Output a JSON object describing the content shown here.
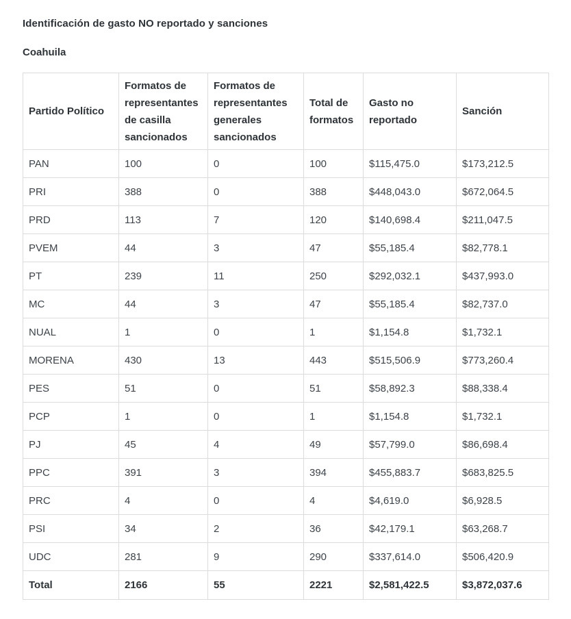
{
  "page": {
    "title": "Identificación de gasto NO reportado y sanciones",
    "subtitle": "Coahuila"
  },
  "table": {
    "columns": [
      "Partido Político",
      "Formatos de representantes de casilla sancionados",
      "Formatos de representantes generales sancionados",
      "Total de formatos",
      "Gasto no reportado",
      "Sanción"
    ],
    "rows": [
      {
        "is_total": false,
        "cells": [
          "PAN",
          "100",
          "0",
          "100",
          "$115,475.0",
          "$173,212.5"
        ]
      },
      {
        "is_total": false,
        "cells": [
          "PRI",
          "388",
          "0",
          "388",
          "$448,043.0",
          "$672,064.5"
        ]
      },
      {
        "is_total": false,
        "cells": [
          "PRD",
          "113",
          "7",
          "120",
          "$140,698.4",
          "$211,047.5"
        ]
      },
      {
        "is_total": false,
        "cells": [
          "PVEM",
          "44",
          "3",
          "47",
          "$55,185.4",
          "$82,778.1"
        ]
      },
      {
        "is_total": false,
        "cells": [
          "PT",
          "239",
          "11",
          "250",
          "$292,032.1",
          "$437,993.0"
        ]
      },
      {
        "is_total": false,
        "cells": [
          "MC",
          "44",
          "3",
          "47",
          "$55,185.4",
          "$82,737.0"
        ]
      },
      {
        "is_total": false,
        "cells": [
          "NUAL",
          "1",
          "0",
          "1",
          "$1,154.8",
          "$1,732.1"
        ]
      },
      {
        "is_total": false,
        "cells": [
          "MORENA",
          "430",
          "13",
          "443",
          "$515,506.9",
          "$773,260.4"
        ]
      },
      {
        "is_total": false,
        "cells": [
          "PES",
          "51",
          "0",
          "51",
          "$58,892.3",
          "$88,338.4"
        ]
      },
      {
        "is_total": false,
        "cells": [
          "PCP",
          "1",
          "0",
          "1",
          "$1,154.8",
          "$1,732.1"
        ]
      },
      {
        "is_total": false,
        "cells": [
          "PJ",
          "45",
          "4",
          "49",
          "$57,799.0",
          "$86,698.4"
        ]
      },
      {
        "is_total": false,
        "cells": [
          "PPC",
          "391",
          "3",
          "394",
          "$455,883.7",
          "$683,825.5"
        ]
      },
      {
        "is_total": false,
        "cells": [
          "PRC",
          "4",
          "0",
          "4",
          "$4,619.0",
          "$6,928.5"
        ]
      },
      {
        "is_total": false,
        "cells": [
          "PSI",
          "34",
          "2",
          "36",
          "$42,179.1",
          "$63,268.7"
        ]
      },
      {
        "is_total": false,
        "cells": [
          "UDC",
          "281",
          "9",
          "290",
          "$337,614.0",
          "$506,420.9"
        ]
      },
      {
        "is_total": true,
        "cells": [
          "Total",
          "2166",
          "55",
          "2221",
          "$2,581,422.5",
          "$3,872,037.6"
        ]
      }
    ]
  },
  "colors": {
    "text": "#3d4349",
    "heading_text": "#2e3338",
    "border": "#dcdcdc",
    "background": "#ffffff"
  }
}
